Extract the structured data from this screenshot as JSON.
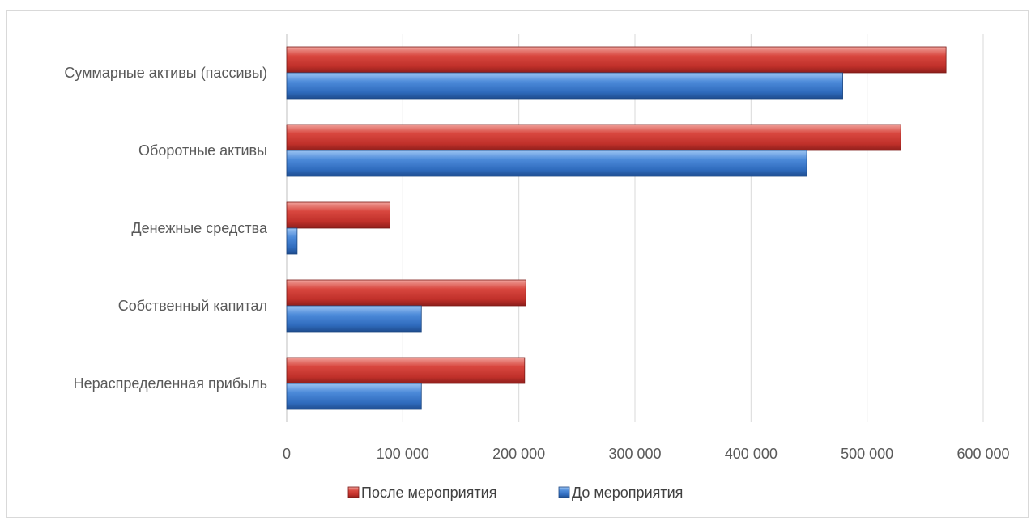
{
  "chart_data": {
    "type": "bar",
    "orientation": "horizontal",
    "categories": [
      "Суммарные активы (пассивы)",
      "Оборотные активы",
      "Денежные средства",
      "Собственный капитал",
      "Нераспределенная прибыль"
    ],
    "series": [
      {
        "name": "После мероприятия",
        "color": "#c0392b",
        "values": [
          568000,
          529000,
          89000,
          206000,
          205000
        ]
      },
      {
        "name": "До мероприятия",
        "color": "#3a78c9",
        "values": [
          479000,
          448000,
          9000,
          116000,
          116000
        ]
      }
    ],
    "xlim": [
      0,
      600000
    ],
    "x_ticks": [
      0,
      100000,
      200000,
      300000,
      400000,
      500000,
      600000
    ],
    "x_tick_labels": [
      "0",
      "100 000",
      "200 000",
      "300 000",
      "400 000",
      "500 000",
      "600 000"
    ],
    "grid": "vertical",
    "legend_position": "bottom"
  }
}
